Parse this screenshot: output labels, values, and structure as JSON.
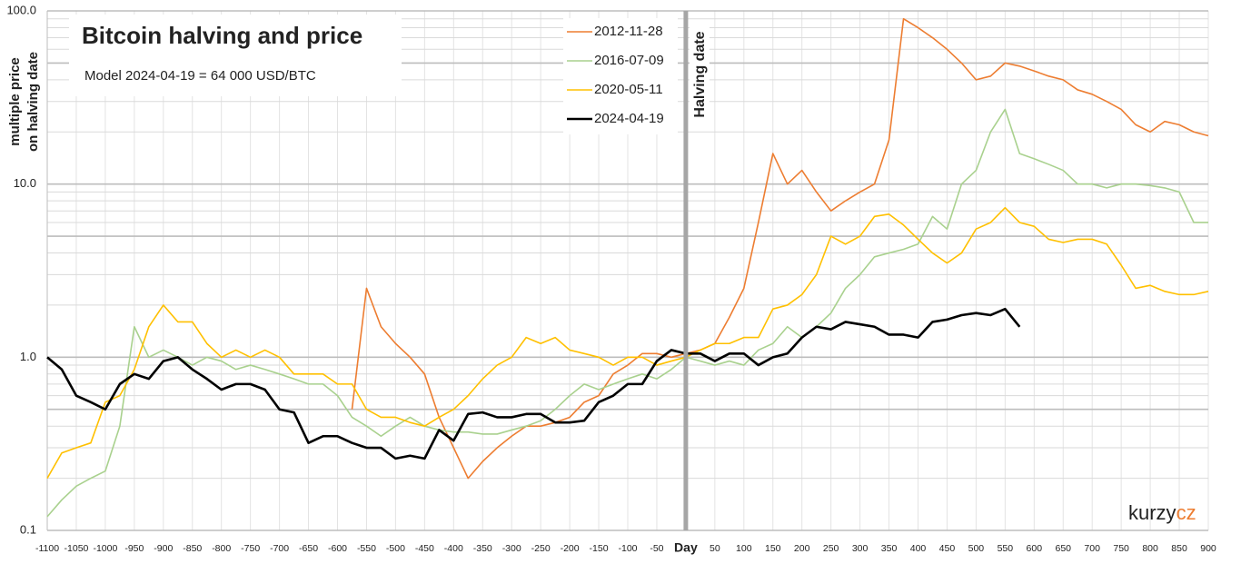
{
  "chart_data": {
    "type": "line",
    "title": "Bitcoin halving and price",
    "subtitle": "Model 2024-04-19 = 64 000 USD/BTC",
    "y_label": [
      "multiple price",
      "on halving date"
    ],
    "halving_marker": {
      "x": 0,
      "label": "Halving date"
    },
    "watermark": {
      "text": "kurzy",
      "suffix": "cz"
    },
    "log_scale_y": true,
    "grid": true,
    "legend": "top",
    "xlim": [
      -1100,
      900
    ],
    "ylim": [
      0.1,
      100
    ],
    "xticks": [
      -1100,
      -1050,
      -1000,
      -950,
      -900,
      -850,
      -800,
      -750,
      -700,
      -650,
      -600,
      -550,
      -500,
      -450,
      -400,
      -350,
      -300,
      -250,
      -200,
      -150,
      -100,
      -50,
      {
        "value": 0,
        "label": "Day"
      },
      50,
      100,
      150,
      200,
      250,
      300,
      350,
      400,
      450,
      500,
      550,
      600,
      650,
      700,
      750,
      800,
      850,
      900
    ],
    "yticks": [
      0.1,
      {
        "value": 1,
        "label": "1.0"
      },
      {
        "value": 10,
        "label": "10.0"
      },
      {
        "value": 100,
        "label": "100.0"
      }
    ],
    "minor_yticks": [
      0.2,
      0.3,
      0.4,
      0.5,
      0.6,
      0.7,
      0.8,
      0.9,
      2,
      3,
      4,
      5,
      6,
      7,
      8,
      9,
      20,
      30,
      40,
      50,
      60,
      70,
      80,
      90
    ],
    "emphasized_yticks": [
      0.5,
      5,
      50
    ],
    "x": [
      -1100,
      -1075,
      -1050,
      -1025,
      -1000,
      -975,
      -950,
      -925,
      -900,
      -875,
      -850,
      -825,
      -800,
      -775,
      -750,
      -725,
      -700,
      -675,
      -650,
      -625,
      -600,
      -575,
      -550,
      -525,
      -500,
      -475,
      -450,
      -425,
      -400,
      -375,
      -350,
      -325,
      -300,
      -275,
      -250,
      -225,
      -200,
      -175,
      -150,
      -125,
      -100,
      -75,
      -50,
      -25,
      0,
      25,
      50,
      75,
      100,
      125,
      150,
      175,
      200,
      225,
      250,
      275,
      300,
      325,
      350,
      375,
      400,
      425,
      450,
      475,
      500,
      525,
      550,
      575,
      600,
      625,
      650,
      675,
      700,
      725,
      750,
      775,
      800,
      825,
      850,
      875,
      900
    ],
    "series": [
      {
        "name": "2012-11-28",
        "color": "#ed7d31",
        "width": 1.6,
        "values": [
          null,
          null,
          null,
          null,
          null,
          null,
          null,
          null,
          null,
          null,
          null,
          null,
          null,
          null,
          null,
          null,
          null,
          null,
          null,
          null,
          null,
          0.5,
          2.5,
          1.5,
          1.2,
          1.0,
          0.8,
          0.45,
          0.3,
          0.2,
          0.25,
          0.3,
          0.35,
          0.4,
          0.4,
          0.42,
          0.45,
          0.55,
          0.6,
          0.8,
          0.9,
          1.05,
          1.05,
          1.0,
          1.05,
          1.1,
          1.2,
          1.7,
          2.5,
          6,
          15,
          10,
          12,
          9,
          7,
          8,
          9,
          10,
          18,
          90,
          80,
          70,
          60,
          50,
          40,
          42,
          50,
          48,
          45,
          42,
          40,
          35,
          33,
          30,
          27,
          22,
          20,
          23,
          22,
          20,
          19
        ]
      },
      {
        "name": "2016-07-09",
        "color": "#a9d18e",
        "width": 1.6,
        "values": [
          0.12,
          0.15,
          0.18,
          0.2,
          0.22,
          0.4,
          1.5,
          1.0,
          1.1,
          1.0,
          0.9,
          1.0,
          0.95,
          0.85,
          0.9,
          0.85,
          0.8,
          0.75,
          0.7,
          0.7,
          0.6,
          0.45,
          0.4,
          0.35,
          0.4,
          0.45,
          0.4,
          0.38,
          0.37,
          0.37,
          0.36,
          0.36,
          0.38,
          0.4,
          0.43,
          0.5,
          0.6,
          0.7,
          0.65,
          0.7,
          0.75,
          0.8,
          0.75,
          0.85,
          1.0,
          0.95,
          0.9,
          0.95,
          0.9,
          1.1,
          1.2,
          1.5,
          1.3,
          1.5,
          1.8,
          2.5,
          3,
          3.8,
          4.0,
          4.2,
          4.5,
          6.5,
          5.5,
          10,
          12,
          20,
          27,
          15,
          14,
          13,
          12,
          10,
          10,
          9.5,
          10,
          10,
          9.8,
          9.5,
          9,
          6,
          6
        ]
      },
      {
        "name": "2020-05-11",
        "color": "#ffc000",
        "width": 1.6,
        "values": [
          0.2,
          0.28,
          0.3,
          0.32,
          0.55,
          0.6,
          0.85,
          1.5,
          2.0,
          1.6,
          1.6,
          1.2,
          1.0,
          1.1,
          1.0,
          1.1,
          1.0,
          0.8,
          0.8,
          0.8,
          0.7,
          0.7,
          0.5,
          0.45,
          0.45,
          0.42,
          0.4,
          0.45,
          0.5,
          0.6,
          0.75,
          0.9,
          1.0,
          1.3,
          1.2,
          1.3,
          1.1,
          1.05,
          1.0,
          0.9,
          1.0,
          1.0,
          0.9,
          0.95,
          1.0,
          1.1,
          1.2,
          1.2,
          1.3,
          1.3,
          1.9,
          2.0,
          2.3,
          3.0,
          5.0,
          4.5,
          5.0,
          6.5,
          6.7,
          5.8,
          4.8,
          4.0,
          3.5,
          4.0,
          5.5,
          6.0,
          7.3,
          6.0,
          5.7,
          4.8,
          4.6,
          4.8,
          4.8,
          4.5,
          3.4,
          2.5,
          2.6,
          2.4,
          2.3,
          2.3,
          2.4
        ]
      },
      {
        "name": "2024-04-19",
        "color": "#000000",
        "width": 2.6,
        "values": [
          1.0,
          0.85,
          0.6,
          0.55,
          0.5,
          0.7,
          0.8,
          0.75,
          0.95,
          1.0,
          0.85,
          0.75,
          0.65,
          0.7,
          0.7,
          0.65,
          0.5,
          0.48,
          0.32,
          0.35,
          0.35,
          0.32,
          0.3,
          0.3,
          0.26,
          0.27,
          0.26,
          0.38,
          0.33,
          0.47,
          0.48,
          0.45,
          0.45,
          0.47,
          0.47,
          0.42,
          0.42,
          0.43,
          0.55,
          0.6,
          0.7,
          0.7,
          0.95,
          1.1,
          1.05,
          1.05,
          0.95,
          1.05,
          1.05,
          0.9,
          1.0,
          1.05,
          1.3,
          1.5,
          1.45,
          1.6,
          1.55,
          1.5,
          1.35,
          1.35,
          1.3,
          1.6,
          1.65,
          1.75,
          1.8,
          1.75,
          1.9,
          1.5,
          null,
          null,
          null,
          null,
          null,
          null,
          null,
          null,
          null,
          null,
          null,
          null,
          null
        ]
      }
    ]
  }
}
